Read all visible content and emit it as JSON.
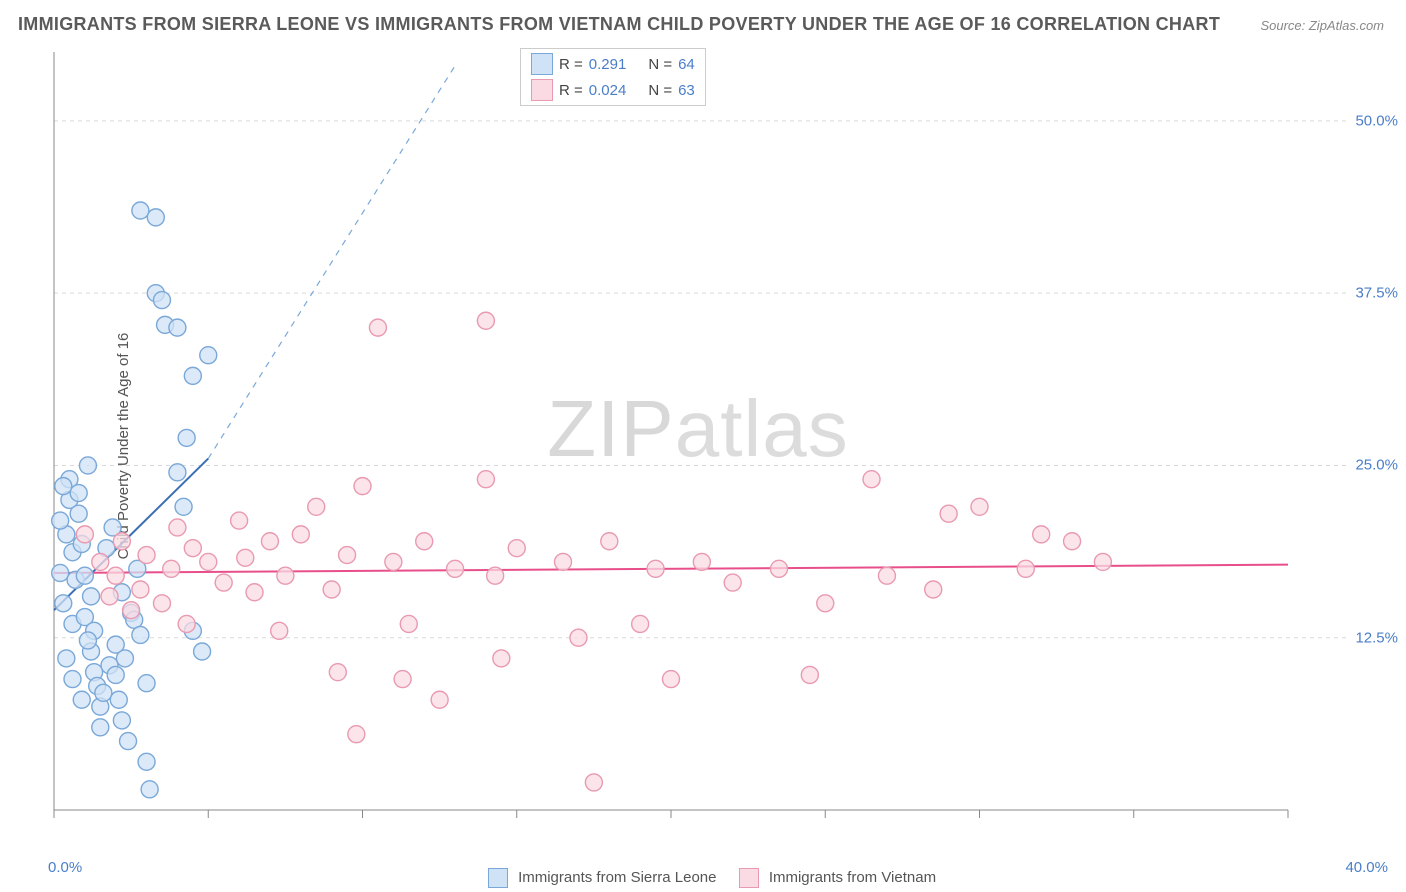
{
  "title": "IMMIGRANTS FROM SIERRA LEONE VS IMMIGRANTS FROM VIETNAM CHILD POVERTY UNDER THE AGE OF 16 CORRELATION CHART",
  "source": "Source: ZipAtlas.com",
  "ylabel": "Child Poverty Under the Age of 16",
  "watermark_a": "ZIP",
  "watermark_b": "atlas",
  "xlim": [
    0,
    40
  ],
  "ylim": [
    0,
    55
  ],
  "x_ticks": [
    0,
    10,
    20,
    30,
    40
  ],
  "x_minor": [
    5,
    15,
    25,
    35
  ],
  "y_ticks": [
    12.5,
    25.0,
    37.5,
    50.0
  ],
  "x_tick_labels": {
    "left": "0.0%",
    "right": "40.0%"
  },
  "y_tick_labels": [
    "12.5%",
    "25.0%",
    "37.5%",
    "50.0%"
  ],
  "grid_color": "#d9d9d9",
  "axis_color": "#888888",
  "background_color": "#ffffff",
  "series": [
    {
      "name": "Immigrants from Sierra Leone",
      "point_fill": "#cfe2f6",
      "point_stroke": "#7aa8d8",
      "line_color": "#3b6fb5",
      "r_value": "0.291",
      "n_value": "64",
      "trend": {
        "x1": 0,
        "y1": 14.5,
        "x2": 5,
        "y2": 25.5,
        "dash_to_x": 13,
        "dash_to_y": 54
      },
      "points": [
        [
          0.2,
          17.2
        ],
        [
          0.3,
          15.0
        ],
        [
          0.4,
          20.0
        ],
        [
          0.5,
          22.5
        ],
        [
          0.5,
          24.0
        ],
        [
          0.6,
          18.7
        ],
        [
          0.6,
          13.5
        ],
        [
          0.7,
          16.7
        ],
        [
          0.8,
          21.5
        ],
        [
          0.8,
          23.0
        ],
        [
          0.9,
          19.3
        ],
        [
          1.0,
          17.0
        ],
        [
          1.0,
          14.0
        ],
        [
          1.1,
          25.0
        ],
        [
          1.2,
          15.5
        ],
        [
          1.2,
          11.5
        ],
        [
          1.3,
          10.0
        ],
        [
          1.3,
          13.0
        ],
        [
          1.4,
          9.0
        ],
        [
          1.5,
          7.5
        ],
        [
          1.5,
          6.0
        ],
        [
          1.6,
          8.5
        ],
        [
          1.8,
          10.5
        ],
        [
          2.0,
          9.8
        ],
        [
          2.0,
          12.0
        ],
        [
          2.1,
          8.0
        ],
        [
          2.2,
          6.5
        ],
        [
          2.3,
          11.0
        ],
        [
          2.4,
          5.0
        ],
        [
          2.5,
          14.3
        ],
        [
          2.6,
          13.8
        ],
        [
          2.8,
          12.7
        ],
        [
          3.0,
          9.2
        ],
        [
          3.0,
          3.5
        ],
        [
          3.1,
          1.5
        ],
        [
          3.3,
          37.5
        ],
        [
          3.5,
          37.0
        ],
        [
          3.6,
          35.2
        ],
        [
          4.0,
          35.0
        ],
        [
          4.0,
          24.5
        ],
        [
          4.2,
          22.0
        ],
        [
          4.3,
          27.0
        ],
        [
          2.8,
          43.5
        ],
        [
          3.3,
          43.0
        ],
        [
          4.5,
          13.0
        ],
        [
          4.5,
          31.5
        ],
        [
          5.0,
          33.0
        ],
        [
          4.8,
          11.5
        ],
        [
          1.7,
          19.0
        ],
        [
          1.9,
          20.5
        ],
        [
          0.4,
          11.0
        ],
        [
          0.6,
          9.5
        ],
        [
          0.9,
          8.0
        ],
        [
          2.2,
          15.8
        ],
        [
          2.7,
          17.5
        ],
        [
          1.1,
          12.3
        ],
        [
          0.3,
          23.5
        ],
        [
          0.2,
          21.0
        ]
      ]
    },
    {
      "name": "Immigrants from Vietnam",
      "point_fill": "#fadbe3",
      "point_stroke": "#e99ab0",
      "line_color": "#e84f8a",
      "r_value": "0.024",
      "n_value": "63",
      "trend": {
        "x1": 0,
        "y1": 17.2,
        "x2": 40,
        "y2": 17.8
      },
      "points": [
        [
          1.0,
          20.0
        ],
        [
          1.5,
          18.0
        ],
        [
          1.8,
          15.5
        ],
        [
          2.0,
          17.0
        ],
        [
          2.2,
          19.5
        ],
        [
          2.5,
          14.5
        ],
        [
          2.8,
          16.0
        ],
        [
          3.0,
          18.5
        ],
        [
          3.5,
          15.0
        ],
        [
          3.8,
          17.5
        ],
        [
          4.0,
          20.5
        ],
        [
          4.3,
          13.5
        ],
        [
          4.5,
          19.0
        ],
        [
          5.0,
          18.0
        ],
        [
          5.5,
          16.5
        ],
        [
          6.0,
          21.0
        ],
        [
          6.2,
          18.3
        ],
        [
          6.5,
          15.8
        ],
        [
          7.0,
          19.5
        ],
        [
          7.3,
          13.0
        ],
        [
          7.5,
          17.0
        ],
        [
          8.0,
          20.0
        ],
        [
          8.5,
          22.0
        ],
        [
          9.0,
          16.0
        ],
        [
          9.2,
          10.0
        ],
        [
          9.5,
          18.5
        ],
        [
          9.8,
          5.5
        ],
        [
          10.0,
          23.5
        ],
        [
          10.5,
          35.0
        ],
        [
          11.0,
          18.0
        ],
        [
          11.3,
          9.5
        ],
        [
          11.5,
          13.5
        ],
        [
          12.0,
          19.5
        ],
        [
          12.5,
          8.0
        ],
        [
          13.0,
          17.5
        ],
        [
          14.0,
          35.5
        ],
        [
          14.0,
          24.0
        ],
        [
          14.3,
          17.0
        ],
        [
          14.5,
          11.0
        ],
        [
          15.0,
          19.0
        ],
        [
          16.5,
          18.0
        ],
        [
          17.0,
          12.5
        ],
        [
          17.5,
          2.0
        ],
        [
          18.0,
          19.5
        ],
        [
          19.0,
          13.5
        ],
        [
          19.5,
          17.5
        ],
        [
          20.0,
          9.5
        ],
        [
          21.0,
          18.0
        ],
        [
          22.0,
          16.5
        ],
        [
          23.5,
          17.5
        ],
        [
          24.5,
          9.8
        ],
        [
          25.0,
          15.0
        ],
        [
          26.5,
          24.0
        ],
        [
          27.0,
          17.0
        ],
        [
          28.5,
          16.0
        ],
        [
          29.0,
          21.5
        ],
        [
          30.0,
          22.0
        ],
        [
          31.5,
          17.5
        ],
        [
          32.0,
          20.0
        ],
        [
          33.0,
          19.5
        ],
        [
          34.0,
          18.0
        ]
      ]
    }
  ],
  "marker_radius": 8.5,
  "marker_stroke_width": 1.4,
  "trend_width": 2.0,
  "legend_labels": {
    "r_prefix": "R  =",
    "n_prefix": "N  ="
  }
}
